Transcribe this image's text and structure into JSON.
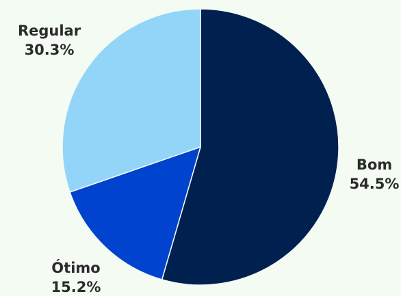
{
  "chart_data": {
    "type": "pie",
    "title": "",
    "slices": [
      {
        "label": "Bom",
        "value": 54.5,
        "display": "54.5%",
        "color": "#002050"
      },
      {
        "label": "Ótimo",
        "value": 15.2,
        "display": "15.2%",
        "color": "#0043cf"
      },
      {
        "label": "Regular",
        "value": 30.3,
        "display": "30.3%",
        "color": "#93d5f9"
      }
    ],
    "start_angle": "12 o'clock",
    "direction": "clockwise",
    "legend": "none"
  }
}
